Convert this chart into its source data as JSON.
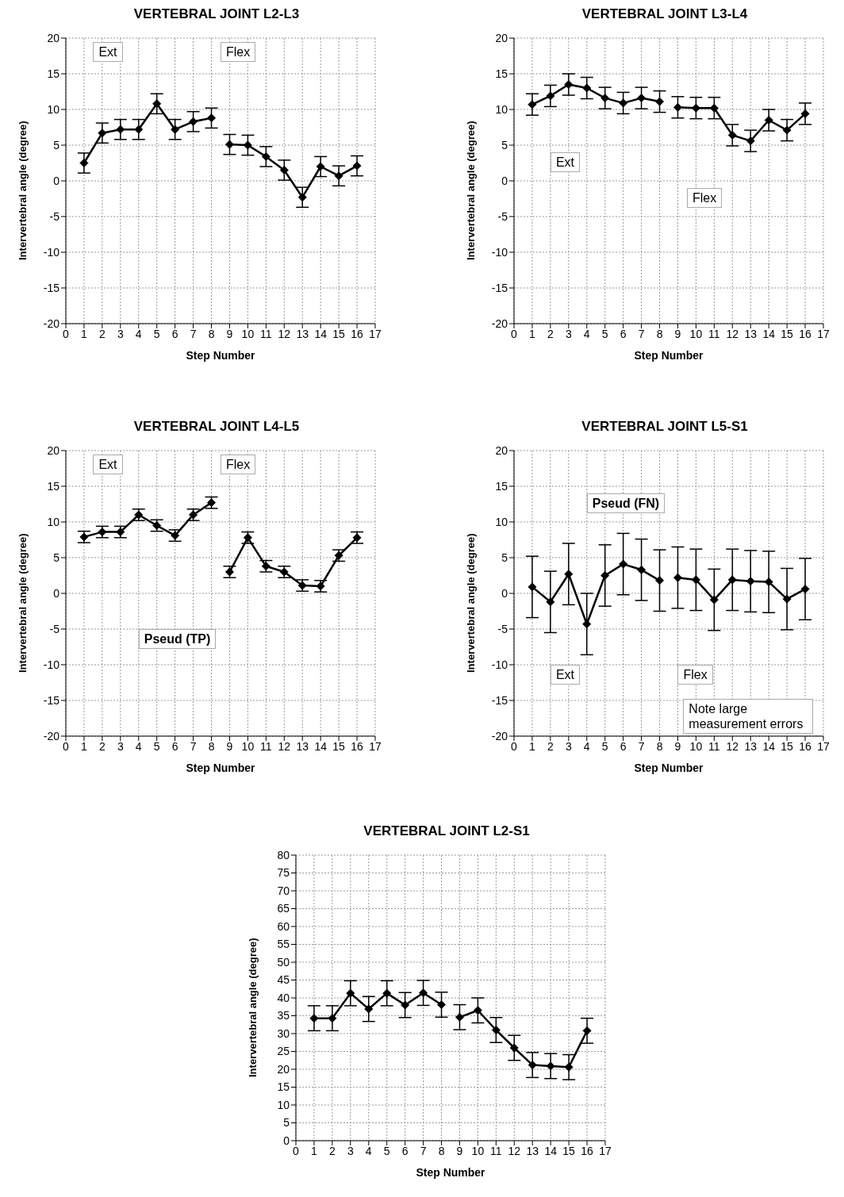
{
  "chart_data": [
    {
      "type": "line",
      "title": "VERTEBRAL JOINT L2-L3",
      "xlabel": "Step Number",
      "ylabel": "Intervertebral angle (degree)",
      "xlim": [
        0,
        17
      ],
      "xticks": [
        0,
        1,
        2,
        3,
        4,
        5,
        6,
        7,
        8,
        9,
        10,
        11,
        12,
        13,
        14,
        15,
        16,
        17
      ],
      "ylim": [
        -20,
        20
      ],
      "yticks": [
        -20,
        -15,
        -10,
        -5,
        0,
        5,
        10,
        15,
        20
      ],
      "grid": true,
      "marker": "diamond",
      "annotations": [
        "Ext",
        "Flex"
      ],
      "series": [
        {
          "color": "#000000",
          "x": [
            1,
            2,
            3,
            4,
            5,
            6,
            7,
            8
          ],
          "values": [
            2.5,
            6.7,
            7.2,
            7.2,
            10.8,
            7.2,
            8.3,
            8.8
          ],
          "errors": [
            1.4,
            1.4,
            1.4,
            1.4,
            1.4,
            1.4,
            1.4,
            1.4
          ]
        },
        {
          "color": "#000000",
          "x": [
            9,
            10,
            11,
            12,
            13,
            14,
            15,
            16
          ],
          "values": [
            5.1,
            5,
            3.4,
            1.5,
            -2.3,
            2,
            0.7,
            2.1
          ],
          "errors": [
            1.4,
            1.4,
            1.4,
            1.4,
            1.4,
            1.4,
            1.4,
            1.4
          ]
        }
      ]
    },
    {
      "type": "line",
      "title": "VERTEBRAL JOINT L3-L4",
      "xlabel": "Step Number",
      "ylabel": "Intervertebral angle (degree)",
      "xlim": [
        0,
        17
      ],
      "xticks": [
        0,
        1,
        2,
        3,
        4,
        5,
        6,
        7,
        8,
        9,
        10,
        11,
        12,
        13,
        14,
        15,
        16,
        17
      ],
      "ylim": [
        -20,
        20
      ],
      "yticks": [
        -20,
        -15,
        -10,
        -5,
        0,
        5,
        10,
        15,
        20
      ],
      "grid": true,
      "marker": "diamond",
      "annotations": [
        "Ext",
        "Flex"
      ],
      "series": [
        {
          "color": "#000000",
          "x": [
            1,
            2,
            3,
            4,
            5,
            6,
            7,
            8
          ],
          "values": [
            10.7,
            11.9,
            13.5,
            13,
            11.6,
            10.9,
            11.6,
            11.1
          ],
          "errors": [
            1.5,
            1.5,
            1.5,
            1.5,
            1.5,
            1.5,
            1.5,
            1.5
          ]
        },
        {
          "color": "#000000",
          "x": [
            9,
            10,
            11,
            12,
            13,
            14,
            15,
            16
          ],
          "values": [
            10.3,
            10.2,
            10.2,
            6.4,
            5.6,
            8.5,
            7.1,
            9.4
          ],
          "errors": [
            1.5,
            1.5,
            1.5,
            1.5,
            1.5,
            1.5,
            1.5,
            1.5
          ]
        }
      ]
    },
    {
      "type": "line",
      "title": "VERTEBRAL JOINT L4-L5",
      "xlabel": "Step Number",
      "ylabel": "Intervertebral angle (degree)",
      "xlim": [
        0,
        17
      ],
      "xticks": [
        0,
        1,
        2,
        3,
        4,
        5,
        6,
        7,
        8,
        9,
        10,
        11,
        12,
        13,
        14,
        15,
        16,
        17
      ],
      "ylim": [
        -20,
        20
      ],
      "yticks": [
        -20,
        -15,
        -10,
        -5,
        0,
        5,
        10,
        15,
        20
      ],
      "grid": true,
      "marker": "diamond",
      "annotations": [
        "Ext",
        "Flex",
        "Pseud (TP)"
      ],
      "series": [
        {
          "color": "#000000",
          "x": [
            1,
            2,
            3,
            4,
            5,
            6,
            7,
            8
          ],
          "values": [
            7.9,
            8.6,
            8.6,
            11,
            9.5,
            8.1,
            11,
            12.7
          ],
          "errors": [
            0.8,
            0.8,
            0.8,
            0.8,
            0.8,
            0.8,
            0.8,
            0.8
          ]
        },
        {
          "color": "#000000",
          "x": [
            9,
            10,
            11,
            12,
            13,
            14,
            15,
            16
          ],
          "values": [
            3,
            7.8,
            3.8,
            3,
            1.1,
            1,
            5.3,
            7.8
          ],
          "errors": [
            0.8,
            0.8,
            0.8,
            0.8,
            0.8,
            0.8,
            0.8,
            0.8
          ]
        }
      ]
    },
    {
      "type": "line",
      "title": "VERTEBRAL JOINT L5-S1",
      "xlabel": "Step Number",
      "ylabel": "Intervertebral angle (degree)",
      "xlim": [
        0,
        17
      ],
      "xticks": [
        0,
        1,
        2,
        3,
        4,
        5,
        6,
        7,
        8,
        9,
        10,
        11,
        12,
        13,
        14,
        15,
        16,
        17
      ],
      "ylim": [
        -20,
        20
      ],
      "yticks": [
        -20,
        -15,
        -10,
        -5,
        0,
        5,
        10,
        15,
        20
      ],
      "grid": true,
      "marker": "diamond",
      "annotations": [
        "Pseud (FN)",
        "Ext",
        "Flex",
        "Note large measurement errors"
      ],
      "series": [
        {
          "color": "#000000",
          "x": [
            1,
            2,
            3,
            4,
            5,
            6,
            7,
            8
          ],
          "values": [
            0.9,
            -1.2,
            2.7,
            -4.3,
            2.5,
            4.1,
            3.3,
            1.8
          ],
          "errors": [
            4.3,
            4.3,
            4.3,
            4.3,
            4.3,
            4.3,
            4.3,
            4.3
          ]
        },
        {
          "color": "#000000",
          "x": [
            9,
            10,
            11,
            12,
            13,
            14,
            15,
            16
          ],
          "values": [
            2.2,
            1.9,
            -0.9,
            1.9,
            1.7,
            1.6,
            -0.8,
            0.6
          ],
          "errors": [
            4.3,
            4.3,
            4.3,
            4.3,
            4.3,
            4.3,
            4.3,
            4.3
          ]
        }
      ]
    },
    {
      "type": "line",
      "title": "VERTEBRAL JOINT L2-S1",
      "xlabel": "Step Number",
      "ylabel": "Intervertebral angle (degree)",
      "xlim": [
        0,
        17
      ],
      "xticks": [
        0,
        1,
        2,
        3,
        4,
        5,
        6,
        7,
        8,
        9,
        10,
        11,
        12,
        13,
        14,
        15,
        16,
        17
      ],
      "ylim": [
        0,
        80
      ],
      "yticks": [
        0,
        5,
        10,
        15,
        20,
        25,
        30,
        35,
        40,
        45,
        50,
        55,
        60,
        65,
        70,
        75,
        80
      ],
      "grid": true,
      "marker": "diamond",
      "series": [
        {
          "color": "#000000",
          "x": [
            1,
            2,
            3,
            4,
            5,
            6,
            7,
            8
          ],
          "values": [
            34.3,
            34.3,
            41.3,
            36.9,
            41.3,
            38,
            41.4,
            38.1
          ],
          "errors": [
            3.5,
            3.5,
            3.5,
            3.5,
            3.5,
            3.5,
            3.5,
            3.5
          ]
        },
        {
          "color": "#000000",
          "x": [
            9,
            10,
            11,
            12,
            13,
            14,
            15,
            16
          ],
          "values": [
            34.6,
            36.5,
            31,
            26,
            21.2,
            20.9,
            20.6,
            30.8
          ],
          "errors": [
            3.5,
            3.5,
            3.5,
            3.5,
            3.5,
            3.5,
            3.5,
            3.5
          ]
        }
      ]
    }
  ]
}
